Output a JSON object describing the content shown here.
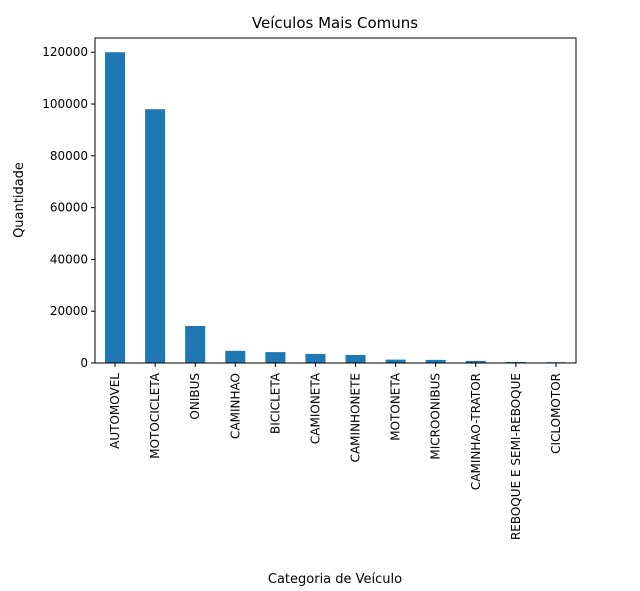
{
  "chart_data": {
    "type": "bar",
    "title": "Veículos Mais Comuns",
    "xlabel": "Categoria de Veículo",
    "ylabel": "Quantidade",
    "categories": [
      "AUTOMOVEL",
      "MOTOCICLETA",
      "ONIBUS",
      "CAMINHAO",
      "BICICLETA",
      "CAMIONETA",
      "CAMINHONETE",
      "MOTONETA",
      "MICROONIBUS",
      "CAMINHAO-TRATOR",
      "REBOQUE E SEMI-REBOQUE",
      "CICLOMOTOR"
    ],
    "values": [
      120000,
      98000,
      14300,
      4700,
      4200,
      3500,
      3100,
      1300,
      1200,
      800,
      400,
      300
    ],
    "yticks": [
      0,
      20000,
      40000,
      60000,
      80000,
      100000,
      120000
    ],
    "ylim": [
      0,
      125500
    ],
    "bar_color": "#1f77b4",
    "grid": false,
    "legend": false
  }
}
